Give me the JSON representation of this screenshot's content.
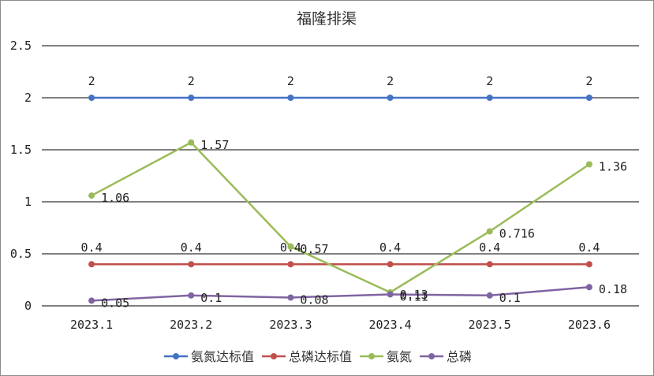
{
  "chart_data": {
    "type": "line",
    "title": "福隆排渠",
    "categories": [
      "2023.1",
      "2023.2",
      "2023.3",
      "2023.4",
      "2023.5",
      "2023.6"
    ],
    "ylim": [
      0,
      2.5
    ],
    "yticks": [
      "0",
      "0.5",
      "1",
      "1.5",
      "2",
      "2.5"
    ],
    "ytick_values": [
      0,
      0.5,
      1,
      1.5,
      2,
      2.5
    ],
    "grid": true,
    "legend_position": "bottom",
    "series": [
      {
        "name": "氨氮达标值",
        "color": "#4472C4",
        "values": [
          2,
          2,
          2,
          2,
          2,
          2
        ],
        "labels": [
          "2",
          "2",
          "2",
          "2",
          "2",
          "2"
        ],
        "label_pos": "above"
      },
      {
        "name": "总磷达标值",
        "color": "#C0504D",
        "values": [
          0.4,
          0.4,
          0.4,
          0.4,
          0.4,
          0.4
        ],
        "labels": [
          "0.4",
          "0.4",
          "0.4",
          "0.4",
          "0.4",
          "0.4"
        ],
        "label_pos": "above"
      },
      {
        "name": "氨氮",
        "color": "#9BBB59",
        "values": [
          1.06,
          1.57,
          0.57,
          0.13,
          0.716,
          1.36
        ],
        "labels": [
          "1.06",
          "1.57",
          "0.57",
          "0.13",
          "0.716",
          "1.36"
        ],
        "label_pos": "right"
      },
      {
        "name": "总磷",
        "color": "#8064A2",
        "values": [
          0.05,
          0.1,
          0.08,
          0.11,
          0.1,
          0.18
        ],
        "labels": [
          "0.05",
          "0.1",
          "0.08",
          "0.11",
          "0.1",
          "0.18"
        ],
        "label_pos": "right"
      }
    ]
  }
}
